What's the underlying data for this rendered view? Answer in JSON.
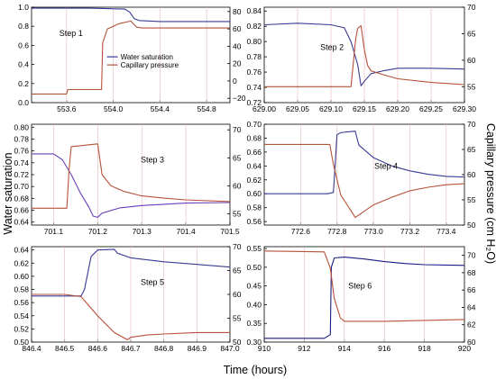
{
  "figure": {
    "ylabel_left": "Water saturation",
    "ylabel_right": "Capillary pressure (cm H₂O)",
    "xlabel": "Time (hours)"
  },
  "chart_data": [
    {
      "type": "line",
      "title": "Step 1",
      "xlim": [
        553.3,
        555.0
      ],
      "xticks": [
        553.6,
        554.0,
        554.4,
        554.8
      ],
      "xticklabels": [
        "553.6",
        "554.0",
        "554.4",
        "554.8"
      ],
      "ylim_left": [
        0,
        1.0
      ],
      "yticks_left": [
        0.0,
        0.2,
        0.4,
        0.6,
        0.8,
        1.0
      ],
      "yticklabels_left": [
        "0.0",
        "0.2",
        "0.4",
        "0.6",
        "0.8",
        "1.0"
      ],
      "ylim_right": [
        -25,
        85
      ],
      "yticks_right": [
        -20,
        0,
        20,
        40,
        60,
        80
      ],
      "yticklabels_right": [
        "−20",
        "0",
        "20",
        "40",
        "60",
        "80"
      ],
      "legend": {
        "placement": "center-right",
        "entries": [
          "Water saturation",
          "Capillary pressure"
        ]
      },
      "series": [
        {
          "name": "Water saturation",
          "color": "#3a3a96",
          "axis": "left",
          "x": [
            553.3,
            553.8,
            554.1,
            554.14,
            554.18,
            554.22,
            554.4,
            554.6,
            555.0
          ],
          "y": [
            0.99,
            0.99,
            0.98,
            0.95,
            0.88,
            0.86,
            0.85,
            0.85,
            0.85
          ]
        },
        {
          "name": "Capillary pressure",
          "color": "#b5523a",
          "axis": "right",
          "x": [
            553.3,
            553.6,
            553.61,
            553.9,
            553.91,
            553.95,
            554.05,
            554.15,
            554.2,
            554.25,
            554.4,
            554.6,
            555.0
          ],
          "y": [
            -15,
            -15,
            -10,
            -10,
            44,
            60,
            66,
            69,
            62,
            61,
            61,
            61,
            61
          ]
        }
      ]
    },
    {
      "type": "line",
      "title": "Step 2",
      "xlim": [
        629.0,
        629.3
      ],
      "xticks": [
        629.0,
        629.05,
        629.1,
        629.15,
        629.2,
        629.25,
        629.3
      ],
      "xticklabels": [
        "629.00",
        "629.05",
        "629.10",
        "629.15",
        "629.20",
        "629.25",
        "629.30"
      ],
      "ylim_left": [
        0.72,
        0.845
      ],
      "yticks_left": [
        0.72,
        0.74,
        0.76,
        0.78,
        0.8,
        0.82,
        0.84
      ],
      "yticklabels_left": [
        "0.72",
        "0.74",
        "0.76",
        "0.78",
        "0.80",
        "0.82",
        "0.84"
      ],
      "ylim_right": [
        52,
        70
      ],
      "yticks_right": [
        55,
        60,
        65,
        70
      ],
      "yticklabels_right": [
        "55",
        "60",
        "65",
        "70"
      ],
      "series": [
        {
          "name": "Water saturation",
          "color": "#3a3a96",
          "axis": "left",
          "x": [
            629.0,
            629.05,
            629.1,
            629.12,
            629.13,
            629.14,
            629.145,
            629.15,
            629.16,
            629.18,
            629.2,
            629.25,
            629.3
          ],
          "y": [
            0.822,
            0.824,
            0.822,
            0.818,
            0.8,
            0.77,
            0.742,
            0.748,
            0.758,
            0.762,
            0.765,
            0.765,
            0.764
          ]
        },
        {
          "name": "Capillary pressure",
          "color": "#b5523a",
          "axis": "right",
          "x": [
            629.0,
            629.05,
            629.1,
            629.13,
            629.137,
            629.14,
            629.145,
            629.15,
            629.155,
            629.16,
            629.18,
            629.2,
            629.25,
            629.3
          ],
          "y": [
            55,
            55,
            55,
            55,
            64,
            66,
            66.5,
            62,
            59,
            58,
            57.2,
            56.5,
            55.8,
            55.4
          ]
        }
      ]
    },
    {
      "type": "line",
      "title": "Step 3",
      "xlim": [
        701.05,
        701.5
      ],
      "xticks": [
        701.1,
        701.2,
        701.3,
        701.4,
        701.5
      ],
      "xticklabels": [
        "701.1",
        "701.2",
        "701.3",
        "701.4",
        "701.5"
      ],
      "ylim_left": [
        0.635,
        0.805
      ],
      "yticks_left": [
        0.64,
        0.66,
        0.68,
        0.7,
        0.72,
        0.74,
        0.76,
        0.78,
        0.8
      ],
      "yticklabels_left": [
        "0.64",
        "0.66",
        "0.68",
        "0.70",
        "0.72",
        "0.74",
        "0.76",
        "0.78",
        "0.80"
      ],
      "ylim_right": [
        53,
        71
      ],
      "yticks_right": [
        55,
        60,
        65,
        70
      ],
      "yticklabels_right": [
        "55",
        "60",
        "65",
        "70"
      ],
      "series": [
        {
          "name": "Water saturation",
          "color": "#6a40b8",
          "axis": "left",
          "x": [
            701.05,
            701.1,
            701.12,
            701.14,
            701.16,
            701.18,
            701.19,
            701.2,
            701.21,
            701.25,
            701.3,
            701.4,
            701.5
          ],
          "y": [
            0.755,
            0.755,
            0.745,
            0.72,
            0.69,
            0.665,
            0.65,
            0.648,
            0.655,
            0.664,
            0.668,
            0.672,
            0.673
          ]
        },
        {
          "name": "Capillary pressure",
          "color": "#b5523a",
          "axis": "right",
          "x": [
            701.05,
            701.13,
            701.135,
            701.14,
            701.2,
            701.21,
            701.23,
            701.26,
            701.3,
            701.35,
            701.4,
            701.5
          ],
          "y": [
            56,
            56,
            63,
            67,
            67.5,
            62,
            60,
            59,
            58.2,
            57.8,
            57.5,
            57.2
          ]
        }
      ]
    },
    {
      "type": "line",
      "title": "Step 4",
      "xlim": [
        772.4,
        773.5
      ],
      "xticks": [
        772.6,
        772.8,
        773.0,
        773.2,
        773.4
      ],
      "xticklabels": [
        "772.6",
        "772.8",
        "773.0",
        "773.2",
        "773.4"
      ],
      "ylim_left": [
        0.555,
        0.7
      ],
      "yticks_left": [
        0.56,
        0.58,
        0.6,
        0.62,
        0.64,
        0.66,
        0.68,
        0.7
      ],
      "yticklabels_left": [
        "0.56",
        "0.58",
        "0.60",
        "0.62",
        "0.64",
        "0.66",
        "0.68",
        "0.70"
      ],
      "ylim_right": [
        50,
        70
      ],
      "yticks_right": [
        50,
        55,
        60,
        65,
        70
      ],
      "yticklabels_right": [
        "50",
        "55",
        "60",
        "65",
        "70"
      ],
      "series": [
        {
          "name": "Water saturation",
          "color": "#3a3a96",
          "axis": "left",
          "x": [
            772.4,
            772.75,
            772.78,
            772.8,
            772.82,
            772.9,
            772.92,
            773.0,
            773.1,
            773.2,
            773.3,
            773.4,
            773.5
          ],
          "y": [
            0.6,
            0.6,
            0.602,
            0.685,
            0.688,
            0.69,
            0.67,
            0.652,
            0.64,
            0.633,
            0.628,
            0.625,
            0.624
          ]
        },
        {
          "name": "Capillary pressure",
          "color": "#b5523a",
          "axis": "right",
          "x": [
            772.4,
            772.76,
            772.78,
            772.82,
            772.9,
            772.92,
            773.0,
            773.1,
            773.2,
            773.3,
            773.4,
            773.5
          ],
          "y": [
            66,
            66,
            62,
            56,
            51.5,
            52,
            54,
            55.5,
            56.8,
            57.5,
            58,
            58.2
          ]
        }
      ]
    },
    {
      "type": "line",
      "title": "Step 5",
      "xlim": [
        846.4,
        847.0
      ],
      "xticks": [
        846.4,
        846.5,
        846.6,
        846.7,
        846.8,
        846.9,
        847.0
      ],
      "xticklabels": [
        "846.4",
        "846.5",
        "846.6",
        "846.7",
        "846.8",
        "846.9",
        "847.0"
      ],
      "ylim_left": [
        0.5,
        0.645
      ],
      "yticks_left": [
        0.5,
        0.52,
        0.54,
        0.56,
        0.58,
        0.6,
        0.62,
        0.64
      ],
      "yticklabels_left": [
        "0.50",
        "0.52",
        "0.54",
        "0.56",
        "0.58",
        "0.60",
        "0.62",
        "0.64"
      ],
      "ylim_right": [
        50,
        70
      ],
      "yticks_right": [
        50,
        55,
        60,
        65,
        70
      ],
      "yticklabels_right": [
        "50",
        "55",
        "60",
        "65",
        "70"
      ],
      "series": [
        {
          "name": "Water saturation",
          "color": "#3a3a96",
          "axis": "left",
          "x": [
            846.4,
            846.55,
            846.56,
            846.58,
            846.6,
            846.65,
            846.66,
            846.7,
            846.8,
            846.9,
            847.0
          ],
          "y": [
            0.57,
            0.57,
            0.58,
            0.63,
            0.64,
            0.641,
            0.635,
            0.628,
            0.622,
            0.618,
            0.614
          ]
        },
        {
          "name": "Capillary pressure",
          "color": "#b5523a",
          "axis": "right",
          "x": [
            846.4,
            846.5,
            846.55,
            846.6,
            846.65,
            846.69,
            846.7,
            846.75,
            846.8,
            846.9,
            847.0
          ],
          "y": [
            60,
            60,
            59.5,
            55.5,
            52,
            50.5,
            51,
            51.5,
            51.7,
            52,
            52
          ]
        }
      ]
    },
    {
      "type": "line",
      "title": "Step 6",
      "xlim": [
        910,
        920
      ],
      "xticks": [
        910,
        912,
        914,
        916,
        918,
        920
      ],
      "xticklabels": [
        "910",
        "912",
        "914",
        "916",
        "918",
        "920"
      ],
      "ylim_left": [
        0.3,
        0.555
      ],
      "yticks_left": [
        0.3,
        0.35,
        0.4,
        0.45,
        0.5,
        0.55
      ],
      "yticklabels_left": [
        "0.30",
        "0.35",
        "0.40",
        "0.45",
        "0.50",
        "0.55"
      ],
      "ylim_right": [
        60,
        71
      ],
      "yticks_right": [
        60,
        62,
        64,
        66,
        68,
        70
      ],
      "yticklabels_right": [
        "60",
        "62",
        "64",
        "66",
        "68",
        "70"
      ],
      "series": [
        {
          "name": "Water saturation",
          "color": "#1a1a80",
          "axis": "left",
          "x": [
            910,
            913.0,
            913.3,
            913.35,
            913.5,
            914.0,
            915.0,
            916.0,
            917.0,
            918.0,
            920.0
          ],
          "y": [
            0.31,
            0.31,
            0.32,
            0.5,
            0.525,
            0.527,
            0.522,
            0.515,
            0.51,
            0.507,
            0.505
          ]
        },
        {
          "name": "Capillary pressure",
          "color": "#b5523a",
          "axis": "right",
          "x": [
            910,
            913.0,
            913.3,
            913.5,
            913.8,
            914.0,
            916.0,
            918.0,
            920.0
          ],
          "y": [
            70.5,
            70.4,
            68.5,
            65,
            62.8,
            62.4,
            62.4,
            62.5,
            62.6
          ]
        }
      ]
    }
  ]
}
